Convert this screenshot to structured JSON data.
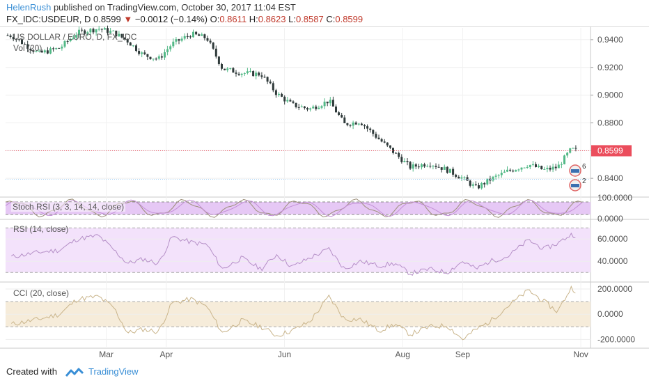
{
  "header": {
    "author": "HelenRush",
    "published_text": "published on TradingView.com, October 30, 2017 11:04 EST",
    "symbol": "FX_IDC:USDEUR, D",
    "last": "0.8599",
    "down_arrow": "▼",
    "change": "−0.0012 (−0.14%)",
    "o_label": "O:",
    "o_value": "0.8611",
    "h_label": "H:",
    "h_value": "0.8623",
    "l_label": "L:",
    "l_value": "0.8587",
    "c_label": "C:",
    "c_value": "0.8599"
  },
  "colors": {
    "up": "#53b987",
    "down": "#eb4d5c",
    "candle_dark": "#2f3a3a",
    "last_price_bg": "#eb4d5c",
    "stoch_fill": "#e6c8f5",
    "rsi_fill": "#f3e2fb",
    "cci_fill": "#f6ecda",
    "link": "#3a8fd6"
  },
  "panes": {
    "price_title": "US DOLLAR / EURO, D, FX_IDC",
    "vol_title": "Vol (20)",
    "stoch_title": "Stoch RSI (3, 3, 14, 14, close)",
    "rsi_title": "RSI (14, close)",
    "cci_title": "CCI (20, close)"
  },
  "chart_data": [
    {
      "type": "candlestick",
      "title": "US DOLLAR / EURO, D, FX_IDC",
      "ylim": [
        0.827,
        0.9485
      ],
      "y_ticks": [
        "0.9400",
        "0.9200",
        "0.9000",
        "0.8800",
        "0.8600",
        "0.8400"
      ],
      "y_tick_values": [
        0.94,
        0.92,
        0.9,
        0.88,
        0.86,
        0.84
      ],
      "last_price": 0.8599,
      "last_price_label": "0.8599",
      "x_ticks": [
        "Mar",
        "Apr",
        "Jun",
        "Aug",
        "Sep",
        "Nov"
      ],
      "x_tick_dates": [
        "2017-03-01",
        "2017-04-01",
        "2017-06-01",
        "2017-08-01",
        "2017-09-01",
        "2017-11-01"
      ],
      "events": [
        {
          "label": "6"
        },
        {
          "label": "2"
        }
      ],
      "close_series": [
        {
          "date": "2017-01-11",
          "close": 0.943
        },
        {
          "date": "2017-01-25",
          "close": 0.93
        },
        {
          "date": "2017-02-05",
          "close": 0.934
        },
        {
          "date": "2017-02-14",
          "close": 0.945
        },
        {
          "date": "2017-02-25",
          "close": 0.948
        },
        {
          "date": "2017-03-05",
          "close": 0.945
        },
        {
          "date": "2017-03-12",
          "close": 0.939
        },
        {
          "date": "2017-03-20",
          "close": 0.929
        },
        {
          "date": "2017-03-28",
          "close": 0.926
        },
        {
          "date": "2017-04-04",
          "close": 0.937
        },
        {
          "date": "2017-04-14",
          "close": 0.944
        },
        {
          "date": "2017-04-22",
          "close": 0.941
        },
        {
          "date": "2017-04-30",
          "close": 0.919
        },
        {
          "date": "2017-05-10",
          "close": 0.916
        },
        {
          "date": "2017-05-20",
          "close": 0.915
        },
        {
          "date": "2017-05-28",
          "close": 0.901
        },
        {
          "date": "2017-06-05",
          "close": 0.893
        },
        {
          "date": "2017-06-14",
          "close": 0.89
        },
        {
          "date": "2017-06-24",
          "close": 0.896
        },
        {
          "date": "2017-07-02",
          "close": 0.879
        },
        {
          "date": "2017-07-10",
          "close": 0.881
        },
        {
          "date": "2017-07-20",
          "close": 0.868
        },
        {
          "date": "2017-07-28",
          "close": 0.858
        },
        {
          "date": "2017-08-05",
          "close": 0.848
        },
        {
          "date": "2017-08-15",
          "close": 0.851
        },
        {
          "date": "2017-08-24",
          "close": 0.846
        },
        {
          "date": "2017-09-01",
          "close": 0.84
        },
        {
          "date": "2017-09-08",
          "close": 0.833
        },
        {
          "date": "2017-09-15",
          "close": 0.839
        },
        {
          "date": "2017-09-24",
          "close": 0.845
        },
        {
          "date": "2017-10-05",
          "close": 0.85
        },
        {
          "date": "2017-10-13",
          "close": 0.846
        },
        {
          "date": "2017-10-20",
          "close": 0.848
        },
        {
          "date": "2017-10-27",
          "close": 0.861
        },
        {
          "date": "2017-10-30",
          "close": 0.8599
        }
      ]
    },
    {
      "type": "line",
      "title": "Stoch RSI (3, 3, 14, 14, close)",
      "ylim": [
        0,
        100
      ],
      "y_ticks": [
        "100.0000",
        "0.0000"
      ],
      "y_tick_values": [
        100,
        0
      ],
      "band": [
        20,
        80
      ]
    },
    {
      "type": "line",
      "title": "RSI (14, close)",
      "ylim": [
        22,
        77
      ],
      "y_ticks": [
        "60.0000",
        "40.0000"
      ],
      "y_tick_values": [
        60,
        40
      ],
      "band": [
        30,
        70
      ],
      "series": [
        {
          "date": "2017-01-11",
          "value": 44
        },
        {
          "date": "2017-01-25",
          "value": 48
        },
        {
          "date": "2017-02-05",
          "value": 50
        },
        {
          "date": "2017-02-14",
          "value": 60
        },
        {
          "date": "2017-02-25",
          "value": 63
        },
        {
          "date": "2017-03-05",
          "value": 50
        },
        {
          "date": "2017-03-12",
          "value": 38
        },
        {
          "date": "2017-03-20",
          "value": 42
        },
        {
          "date": "2017-03-28",
          "value": 38
        },
        {
          "date": "2017-04-04",
          "value": 62
        },
        {
          "date": "2017-04-14",
          "value": 57
        },
        {
          "date": "2017-04-22",
          "value": 55
        },
        {
          "date": "2017-04-30",
          "value": 33
        },
        {
          "date": "2017-05-10",
          "value": 43
        },
        {
          "date": "2017-05-20",
          "value": 33
        },
        {
          "date": "2017-05-28",
          "value": 46
        },
        {
          "date": "2017-06-05",
          "value": 35
        },
        {
          "date": "2017-06-14",
          "value": 43
        },
        {
          "date": "2017-06-24",
          "value": 51
        },
        {
          "date": "2017-07-02",
          "value": 33
        },
        {
          "date": "2017-07-10",
          "value": 40
        },
        {
          "date": "2017-07-20",
          "value": 36
        },
        {
          "date": "2017-07-28",
          "value": 38
        },
        {
          "date": "2017-08-05",
          "value": 29
        },
        {
          "date": "2017-08-15",
          "value": 33
        },
        {
          "date": "2017-08-24",
          "value": 30
        },
        {
          "date": "2017-09-01",
          "value": 40
        },
        {
          "date": "2017-09-08",
          "value": 33
        },
        {
          "date": "2017-09-15",
          "value": 40
        },
        {
          "date": "2017-09-24",
          "value": 44
        },
        {
          "date": "2017-10-05",
          "value": 59
        },
        {
          "date": "2017-10-13",
          "value": 51
        },
        {
          "date": "2017-10-20",
          "value": 56
        },
        {
          "date": "2017-10-27",
          "value": 64
        },
        {
          "date": "2017-10-30",
          "value": 63
        }
      ]
    },
    {
      "type": "line",
      "title": "CCI (20, close)",
      "ylim": [
        -270,
        250
      ],
      "y_ticks": [
        "200.0000",
        "0.0000",
        "-200.0000"
      ],
      "y_tick_values": [
        200,
        0,
        -200
      ],
      "band": [
        -100,
        100
      ],
      "series": [
        {
          "date": "2017-01-11",
          "value": -80
        },
        {
          "date": "2017-01-25",
          "value": -40
        },
        {
          "date": "2017-02-05",
          "value": 0
        },
        {
          "date": "2017-02-14",
          "value": 120
        },
        {
          "date": "2017-02-25",
          "value": 140
        },
        {
          "date": "2017-03-05",
          "value": 50
        },
        {
          "date": "2017-03-12",
          "value": -150
        },
        {
          "date": "2017-03-20",
          "value": -120
        },
        {
          "date": "2017-03-28",
          "value": -140
        },
        {
          "date": "2017-04-04",
          "value": 90
        },
        {
          "date": "2017-04-14",
          "value": 120
        },
        {
          "date": "2017-04-22",
          "value": 60
        },
        {
          "date": "2017-04-30",
          "value": -150
        },
        {
          "date": "2017-05-10",
          "value": -50
        },
        {
          "date": "2017-05-20",
          "value": -100
        },
        {
          "date": "2017-05-28",
          "value": -170
        },
        {
          "date": "2017-06-05",
          "value": -130
        },
        {
          "date": "2017-06-14",
          "value": -60
        },
        {
          "date": "2017-06-24",
          "value": 140
        },
        {
          "date": "2017-07-02",
          "value": -40
        },
        {
          "date": "2017-07-10",
          "value": -40
        },
        {
          "date": "2017-07-20",
          "value": -130
        },
        {
          "date": "2017-07-28",
          "value": -80
        },
        {
          "date": "2017-08-05",
          "value": -160
        },
        {
          "date": "2017-08-15",
          "value": -100
        },
        {
          "date": "2017-08-24",
          "value": -90
        },
        {
          "date": "2017-09-01",
          "value": -200
        },
        {
          "date": "2017-09-08",
          "value": -120
        },
        {
          "date": "2017-09-15",
          "value": -60
        },
        {
          "date": "2017-09-24",
          "value": 60
        },
        {
          "date": "2017-10-05",
          "value": 190
        },
        {
          "date": "2017-10-13",
          "value": 100
        },
        {
          "date": "2017-10-20",
          "value": 20
        },
        {
          "date": "2017-10-27",
          "value": 210
        },
        {
          "date": "2017-10-30",
          "value": 180
        }
      ]
    }
  ],
  "footer": {
    "created_with": "Created with",
    "brand": "TradingView"
  }
}
